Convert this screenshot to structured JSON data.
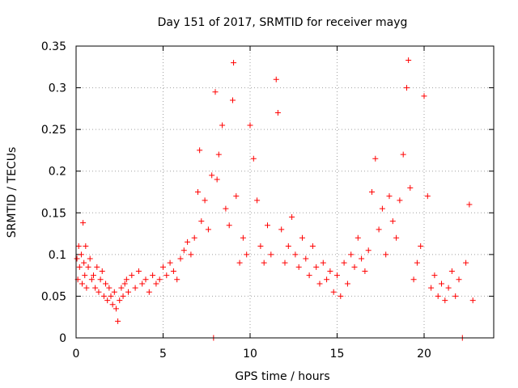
{
  "chart_data": {
    "type": "scatter",
    "title": "Day 151 of 2017, SRMTID for receiver mayg",
    "xlabel": "GPS time / hours",
    "ylabel": "SRMTID / TECUs",
    "xlim": [
      0,
      24
    ],
    "ylim": [
      0,
      0.35
    ],
    "xticks": [
      0,
      5,
      10,
      15,
      20
    ],
    "yticks": [
      0,
      0.05,
      0.1,
      0.15,
      0.2,
      0.25,
      0.3,
      0.35
    ],
    "xtick_labels": [
      "0",
      "5",
      "10",
      "15",
      "20"
    ],
    "ytick_labels": [
      "0",
      "0.05",
      "0.1",
      "0.15",
      "0.2",
      "0.25",
      "0.3",
      "0.35"
    ],
    "grid": true,
    "marker": "+",
    "marker_color": "#ff0000",
    "series": [
      {
        "name": "SRMTID",
        "points": [
          [
            0.05,
            0.095
          ],
          [
            0.1,
            0.07
          ],
          [
            0.15,
            0.11
          ],
          [
            0.2,
            0.085
          ],
          [
            0.3,
            0.1
          ],
          [
            0.35,
            0.065
          ],
          [
            0.4,
            0.138
          ],
          [
            0.45,
            0.09
          ],
          [
            0.5,
            0.075
          ],
          [
            0.55,
            0.11
          ],
          [
            0.6,
            0.06
          ],
          [
            0.7,
            0.085
          ],
          [
            0.8,
            0.095
          ],
          [
            0.9,
            0.07
          ],
          [
            1.0,
            0.075
          ],
          [
            1.1,
            0.06
          ],
          [
            1.2,
            0.085
          ],
          [
            1.3,
            0.055
          ],
          [
            1.4,
            0.07
          ],
          [
            1.5,
            0.08
          ],
          [
            1.6,
            0.05
          ],
          [
            1.7,
            0.065
          ],
          [
            1.8,
            0.045
          ],
          [
            1.9,
            0.06
          ],
          [
            2.0,
            0.05
          ],
          [
            2.1,
            0.04
          ],
          [
            2.2,
            0.055
          ],
          [
            2.3,
            0.035
          ],
          [
            2.4,
            0.02
          ],
          [
            2.5,
            0.045
          ],
          [
            2.6,
            0.06
          ],
          [
            2.7,
            0.05
          ],
          [
            2.8,
            0.065
          ],
          [
            2.9,
            0.07
          ],
          [
            3.0,
            0.055
          ],
          [
            3.2,
            0.075
          ],
          [
            3.4,
            0.06
          ],
          [
            3.6,
            0.08
          ],
          [
            3.8,
            0.065
          ],
          [
            4.0,
            0.07
          ],
          [
            4.2,
            0.055
          ],
          [
            4.4,
            0.075
          ],
          [
            4.6,
            0.065
          ],
          [
            4.8,
            0.07
          ],
          [
            5.0,
            0.085
          ],
          [
            5.2,
            0.075
          ],
          [
            5.4,
            0.09
          ],
          [
            5.6,
            0.08
          ],
          [
            5.8,
            0.07
          ],
          [
            6.0,
            0.095
          ],
          [
            6.2,
            0.105
          ],
          [
            6.4,
            0.115
          ],
          [
            6.6,
            0.1
          ],
          [
            6.8,
            0.12
          ],
          [
            7.0,
            0.175
          ],
          [
            7.1,
            0.225
          ],
          [
            7.2,
            0.14
          ],
          [
            7.4,
            0.165
          ],
          [
            7.6,
            0.13
          ],
          [
            7.8,
            0.195
          ],
          [
            7.9,
            0.0
          ],
          [
            8.0,
            0.295
          ],
          [
            8.1,
            0.19
          ],
          [
            8.2,
            0.22
          ],
          [
            8.4,
            0.255
          ],
          [
            8.6,
            0.155
          ],
          [
            8.8,
            0.135
          ],
          [
            9.0,
            0.285
          ],
          [
            9.05,
            0.33
          ],
          [
            9.2,
            0.17
          ],
          [
            9.4,
            0.09
          ],
          [
            9.6,
            0.12
          ],
          [
            9.8,
            0.1
          ],
          [
            10.0,
            0.255
          ],
          [
            10.2,
            0.215
          ],
          [
            10.4,
            0.165
          ],
          [
            10.6,
            0.11
          ],
          [
            10.8,
            0.09
          ],
          [
            11.0,
            0.135
          ],
          [
            11.2,
            0.1
          ],
          [
            11.5,
            0.31
          ],
          [
            11.6,
            0.27
          ],
          [
            11.8,
            0.13
          ],
          [
            12.0,
            0.09
          ],
          [
            12.2,
            0.11
          ],
          [
            12.4,
            0.145
          ],
          [
            12.6,
            0.1
          ],
          [
            12.8,
            0.085
          ],
          [
            13.0,
            0.12
          ],
          [
            13.2,
            0.095
          ],
          [
            13.4,
            0.075
          ],
          [
            13.6,
            0.11
          ],
          [
            13.8,
            0.085
          ],
          [
            14.0,
            0.065
          ],
          [
            14.2,
            0.09
          ],
          [
            14.4,
            0.07
          ],
          [
            14.6,
            0.08
          ],
          [
            14.8,
            0.055
          ],
          [
            15.0,
            0.075
          ],
          [
            15.2,
            0.05
          ],
          [
            15.4,
            0.09
          ],
          [
            15.6,
            0.065
          ],
          [
            15.8,
            0.1
          ],
          [
            16.0,
            0.085
          ],
          [
            16.2,
            0.12
          ],
          [
            16.4,
            0.095
          ],
          [
            16.6,
            0.08
          ],
          [
            16.8,
            0.105
          ],
          [
            17.0,
            0.175
          ],
          [
            17.2,
            0.215
          ],
          [
            17.4,
            0.13
          ],
          [
            17.6,
            0.155
          ],
          [
            17.8,
            0.1
          ],
          [
            18.0,
            0.17
          ],
          [
            18.2,
            0.14
          ],
          [
            18.4,
            0.12
          ],
          [
            18.6,
            0.165
          ],
          [
            18.8,
            0.22
          ],
          [
            19.0,
            0.3
          ],
          [
            19.1,
            0.333
          ],
          [
            19.2,
            0.18
          ],
          [
            19.4,
            0.07
          ],
          [
            19.6,
            0.09
          ],
          [
            19.8,
            0.11
          ],
          [
            20.0,
            0.29
          ],
          [
            20.2,
            0.17
          ],
          [
            20.4,
            0.06
          ],
          [
            20.6,
            0.075
          ],
          [
            20.8,
            0.05
          ],
          [
            21.0,
            0.065
          ],
          [
            21.2,
            0.045
          ],
          [
            21.4,
            0.06
          ],
          [
            21.6,
            0.08
          ],
          [
            21.8,
            0.05
          ],
          [
            22.0,
            0.07
          ],
          [
            22.2,
            0.0
          ],
          [
            22.4,
            0.09
          ],
          [
            22.6,
            0.16
          ],
          [
            22.8,
            0.045
          ]
        ]
      }
    ]
  }
}
